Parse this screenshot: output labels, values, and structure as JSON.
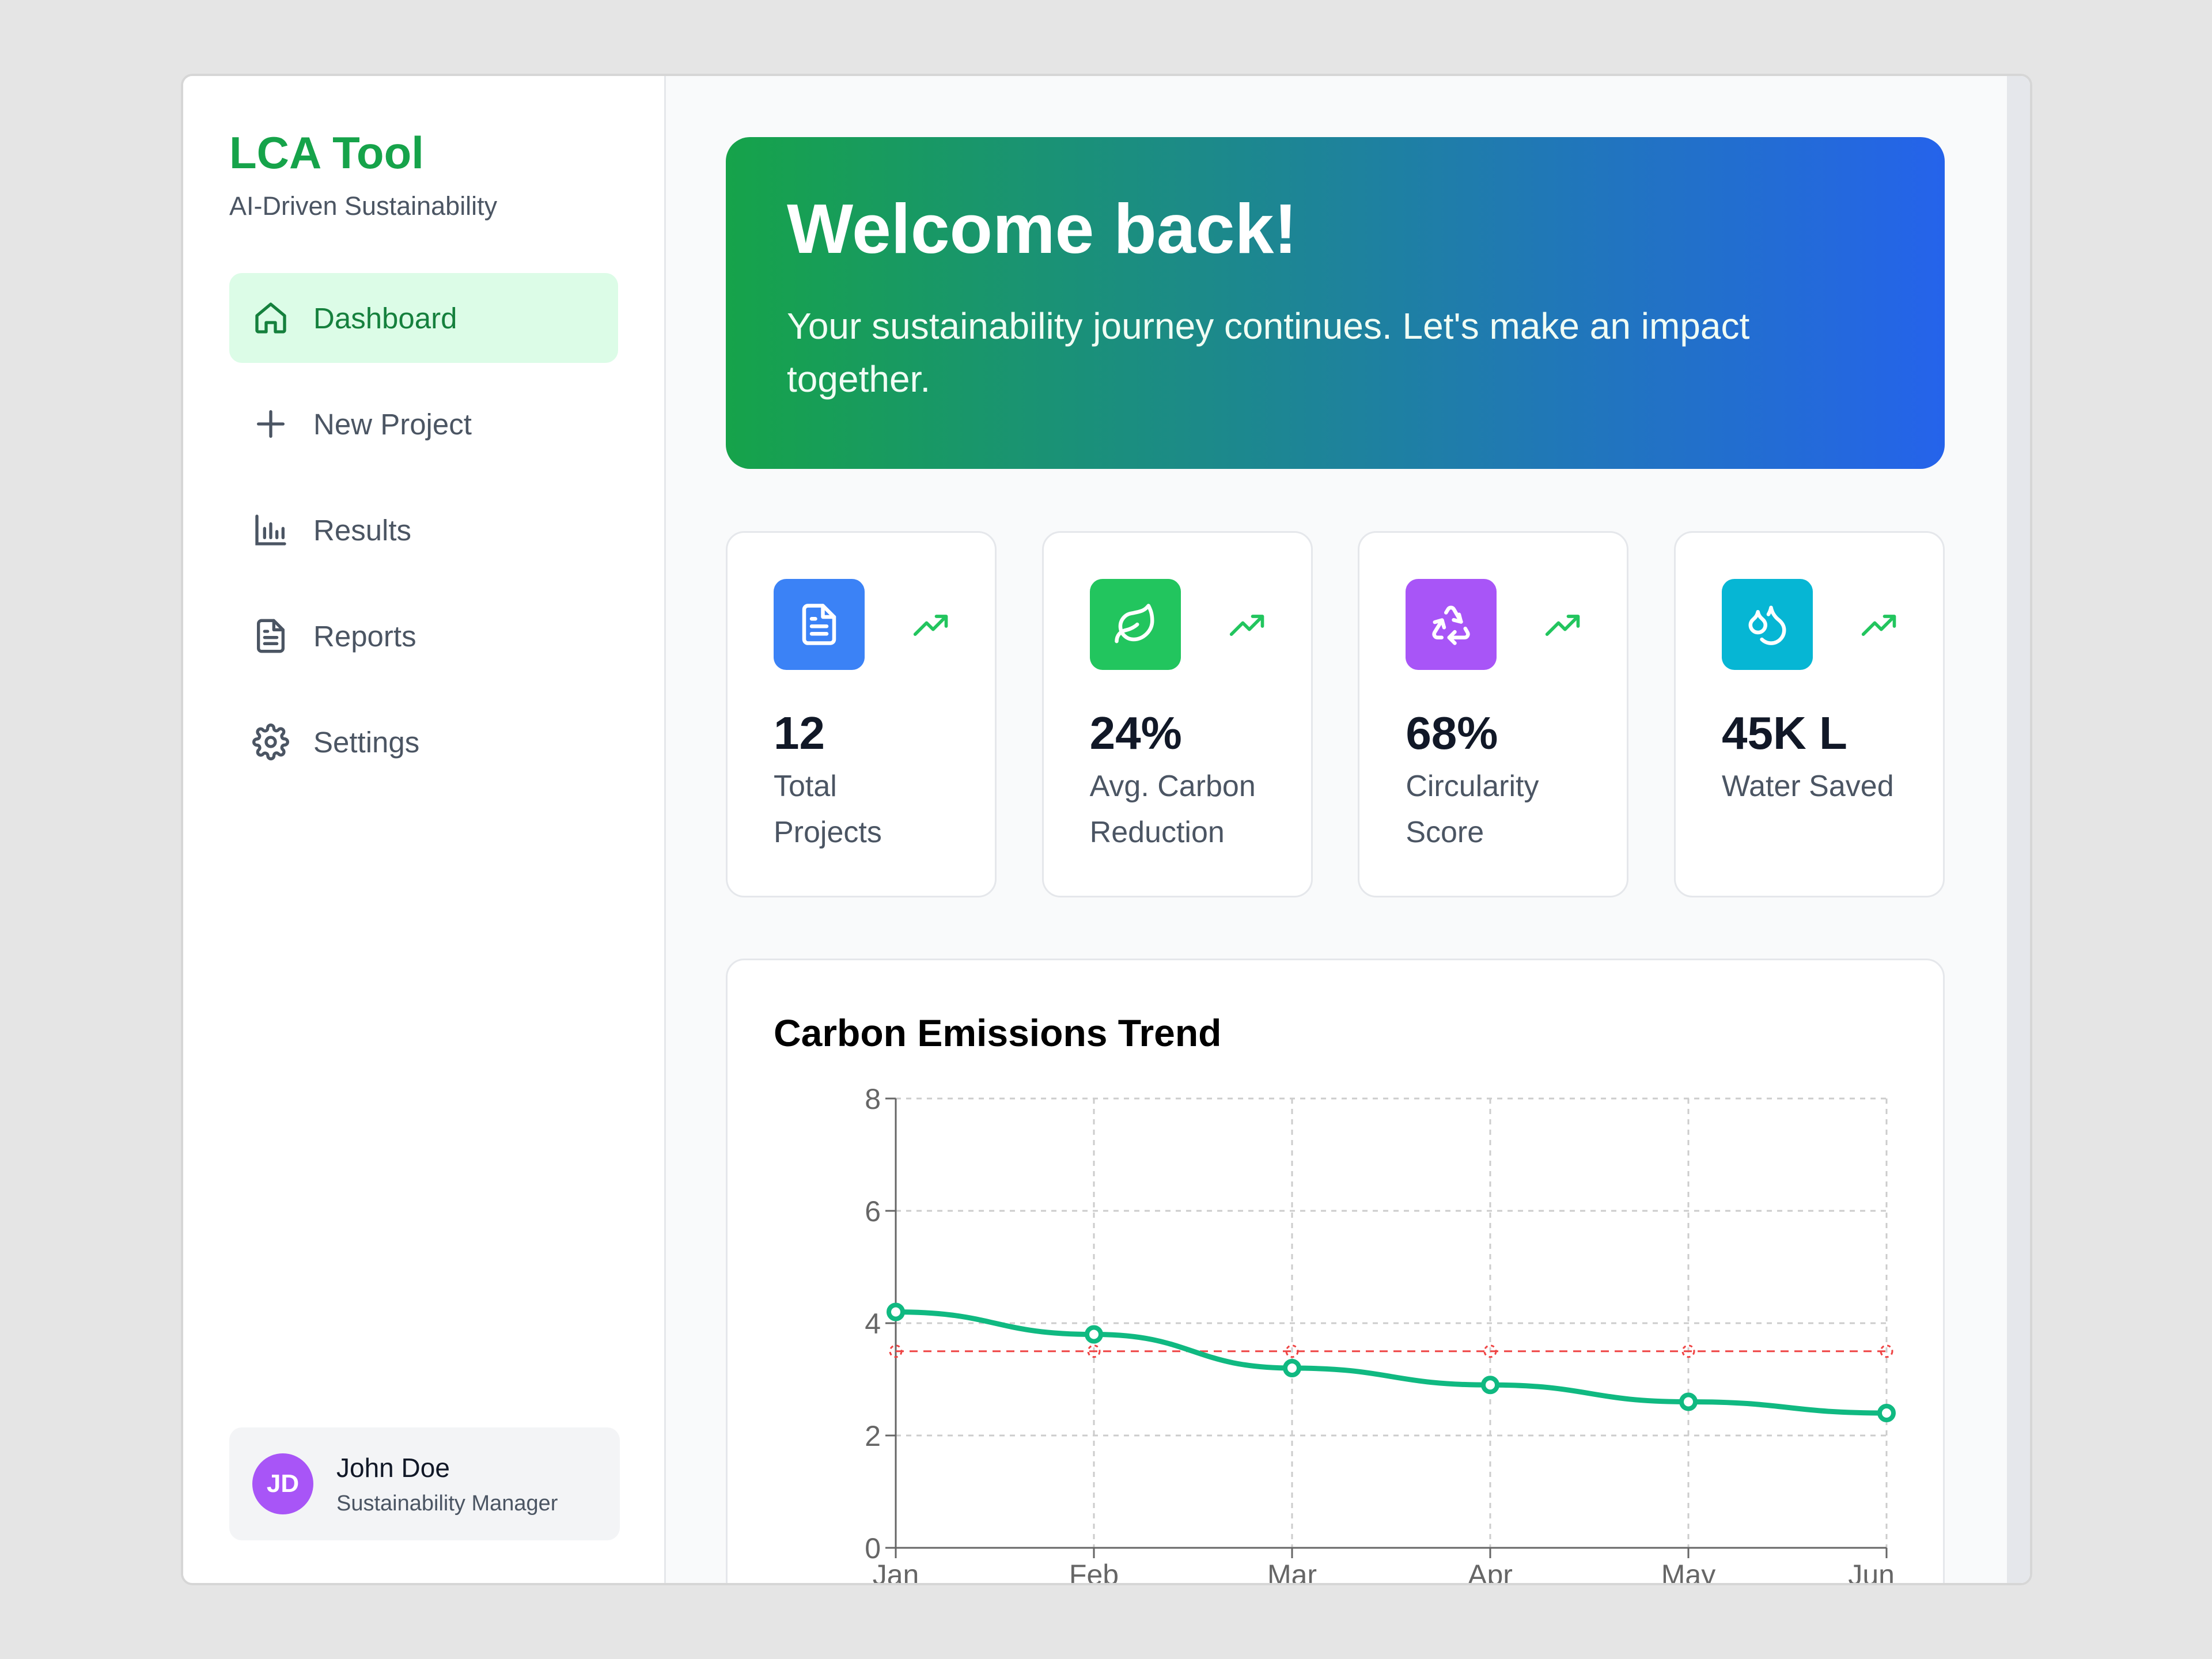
{
  "sidebar": {
    "title": "LCA Tool",
    "subtitle": "AI-Driven Sustainability",
    "items": [
      {
        "label": "Dashboard",
        "icon": "home-icon",
        "active": true
      },
      {
        "label": "New Project",
        "icon": "plus-icon"
      },
      {
        "label": "Results",
        "icon": "bar-chart-icon"
      },
      {
        "label": "Reports",
        "icon": "file-text-icon"
      },
      {
        "label": "Settings",
        "icon": "gear-icon"
      }
    ],
    "user": {
      "initials": "JD",
      "name": "John Doe",
      "role": "Sustainability Manager"
    }
  },
  "hero": {
    "title": "Welcome back!",
    "message": "Your sustainability journey continues. Let's make an impact together."
  },
  "stats": [
    {
      "value": "12",
      "label": "Total Projects",
      "icon": "document-icon",
      "color": "#3b82f6"
    },
    {
      "value": "24%",
      "label": "Avg. Carbon Reduction",
      "icon": "leaf-icon",
      "color": "#22c55e"
    },
    {
      "value": "68%",
      "label": "Circularity Score",
      "icon": "recycle-icon",
      "color": "#a855f7"
    },
    {
      "value": "45K L",
      "label": "Water Saved",
      "icon": "droplets-icon",
      "color": "#06b6d4"
    }
  ],
  "colors": {
    "brand": "#16a34a",
    "line": "#10b981",
    "target": "#ef4444",
    "trend": "#22c55e"
  },
  "chart_data": {
    "type": "line",
    "title": "Carbon Emissions Trend",
    "categories": [
      "Jan",
      "Feb",
      "Mar",
      "Apr",
      "May",
      "Jun"
    ],
    "series": [
      {
        "values": [
          4.2,
          3.8,
          3.2,
          2.9,
          2.6,
          2.4
        ]
      },
      {
        "values": [
          3.5,
          3.5,
          3.5,
          3.5,
          3.5,
          3.5
        ],
        "style": "dashed"
      }
    ],
    "yticks": [
      0,
      2,
      4,
      6,
      8
    ],
    "ylim": [
      0,
      8
    ],
    "grid": true
  }
}
